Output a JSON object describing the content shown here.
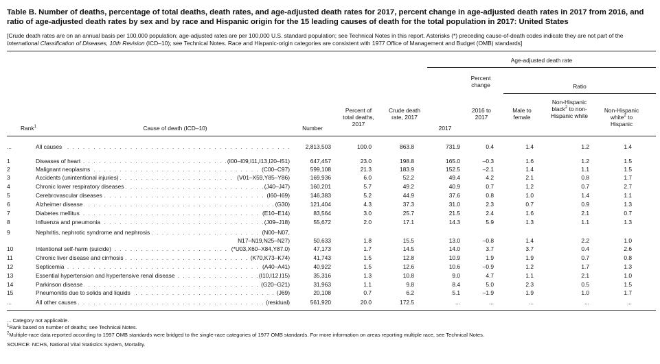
{
  "title": "Table B. Number of deaths, percentage of total deaths, death rates, and age-adjusted death rates for 2017, percent change in age-adjusted death rates in 2017 from 2016, and ratio of age-adjusted death rates by sex and by race and Hispanic origin for the 15 leading causes of death for the total population in 2017: United States",
  "subtitle_parts": {
    "a": "[Crude death rates are on an annual basis per 100,000 population; age-adjusted rates are per 100,000 U.S. standard population; see Technical Notes in this report. Asterisks (*) preceding cause-of-death codes indicate they are not part of the ",
    "b": "International Classification of Diseases, 10th Revision",
    "c": " (ICD–10); see Technical Notes. Race and Hispanic-origin categories are consistent with 1977 Office of Management and Budget (OMB) standards]"
  },
  "headers": {
    "age_adjusted": "Age-adjusted death rate",
    "percent_change": "Percent change",
    "ratio": "Ratio",
    "rank": "Rank",
    "rank_sup": "1",
    "cause": "Cause of death (ICD–10)",
    "number": "Number",
    "percent_total": "Percent of total deaths, 2017",
    "crude": "Crude death rate, 2017",
    "y2017": "2017",
    "change": "2016 to 2017",
    "male_female": "Male to female",
    "black_pre": "Non-Hispanic black",
    "black_sup": "2",
    "black_post": " to non-Hispanic white",
    "white_pre": "Non-Hispanic white",
    "white_sup": "2",
    "white_post": " to Hispanic"
  },
  "rows": [
    {
      "rank": "...",
      "cause": "All causes",
      "code": "",
      "number": "2,813,503",
      "pct": "100.0",
      "crude": "863.8",
      "aa": "731.9",
      "pc": "0.4",
      "male": "1.4",
      "black": "1.2",
      "white": "1.4"
    },
    {
      "rank": "1",
      "cause": "Diseases of heart",
      "code": "(I00–I09,I11,I13,I20–I51)",
      "number": "647,457",
      "pct": "23.0",
      "crude": "198.8",
      "aa": "165.0",
      "pc": "–0.3",
      "male": "1.6",
      "black": "1.2",
      "white": "1.5"
    },
    {
      "rank": "2",
      "cause": "Malignant neoplasms",
      "code": "(C00–C97)",
      "number": "599,108",
      "pct": "21.3",
      "crude": "183.9",
      "aa": "152.5",
      "pc": "–2.1",
      "male": "1.4",
      "black": "1.1",
      "white": "1.5"
    },
    {
      "rank": "3",
      "cause": "Accidents (unintentional injuries)",
      "code": "(V01–X59,Y85–Y86)",
      "number": "169,936",
      "pct": "6.0",
      "crude": "52.2",
      "aa": "49.4",
      "pc": "4.2",
      "male": "2.1",
      "black": "0.8",
      "white": "1.7"
    },
    {
      "rank": "4",
      "cause": "Chronic lower respiratory diseases",
      "code": "(J40–J47)",
      "number": "160,201",
      "pct": "5.7",
      "crude": "49.2",
      "aa": "40.9",
      "pc": "0.7",
      "male": "1.2",
      "black": "0.7",
      "white": "2.7"
    },
    {
      "rank": "5",
      "cause": "Cerebrovascular diseases",
      "code": "(I60–I69)",
      "number": "146,383",
      "pct": "5.2",
      "crude": "44.9",
      "aa": "37.6",
      "pc": "0.8",
      "male": "1.0",
      "black": "1.4",
      "white": "1.1"
    },
    {
      "rank": "6",
      "cause": "Alzheimer disease",
      "code": "(G30)",
      "number": "121,404",
      "pct": "4.3",
      "crude": "37.3",
      "aa": "31.0",
      "pc": "2.3",
      "male": "0.7",
      "black": "0.9",
      "white": "1.3"
    },
    {
      "rank": "7",
      "cause": "Diabetes mellitus",
      "code": "(E10–E14)",
      "number": "83,564",
      "pct": "3.0",
      "crude": "25.7",
      "aa": "21.5",
      "pc": "2.4",
      "male": "1.6",
      "black": "2.1",
      "white": "0.7"
    },
    {
      "rank": "8",
      "cause": "Influenza and pneumonia",
      "code": "(J09–J18)",
      "number": "55,672",
      "pct": "2.0",
      "crude": "17.1",
      "aa": "14.3",
      "pc": "5.9",
      "male": "1.3",
      "black": "1.1",
      "white": "1.3"
    },
    {
      "rank": "9",
      "cause": "Nephritis, nephrotic syndrome and nephrosis",
      "code": "(N00–N07,",
      "code2": "N17–N19,N25–N27)",
      "number": "50,633",
      "pct": "1.8",
      "crude": "15.5",
      "aa": "13.0",
      "pc": "–0.8",
      "male": "1.4",
      "black": "2.2",
      "white": "1.0"
    },
    {
      "rank": "10",
      "cause": "Intentional self-harm (suicide)",
      "code": "(*U03,X60–X84,Y87.0)",
      "number": "47,173",
      "pct": "1.7",
      "crude": "14.5",
      "aa": "14.0",
      "pc": "3.7",
      "male": "3.7",
      "black": "0.4",
      "white": "2.6"
    },
    {
      "rank": "11",
      "cause": "Chronic liver disease and cirrhosis",
      "code": "(K70,K73–K74)",
      "number": "41,743",
      "pct": "1.5",
      "crude": "12.8",
      "aa": "10.9",
      "pc": "1.9",
      "male": "1.9",
      "black": "0.7",
      "white": "0.8"
    },
    {
      "rank": "12",
      "cause": "Septicemia",
      "code": "(A40–A41)",
      "number": "40,922",
      "pct": "1.5",
      "crude": "12.6",
      "aa": "10.6",
      "pc": "–0.9",
      "male": "1.2",
      "black": "1.7",
      "white": "1.3"
    },
    {
      "rank": "13",
      "cause": "Essential hypertension and hypertensive renal disease",
      "code": "(I10,I12,I15)",
      "number": "35,316",
      "pct": "1.3",
      "crude": "10.8",
      "aa": "9.0",
      "pc": "4.7",
      "male": "1.1",
      "black": "2.1",
      "white": "1.0"
    },
    {
      "rank": "14",
      "cause": "Parkinson disease",
      "code": "(G20–G21)",
      "number": "31,963",
      "pct": "1.1",
      "crude": "9.8",
      "aa": "8.4",
      "pc": "5.0",
      "male": "2.3",
      "black": "0.5",
      "white": "1.5"
    },
    {
      "rank": "15",
      "cause": "Pneumonitis due to solids and liquids",
      "code": "(J69)",
      "number": "20,108",
      "pct": "0.7",
      "crude": "6.2",
      "aa": "5.1",
      "pc": "–1.9",
      "male": "1.9",
      "black": "1.0",
      "white": "1.7"
    },
    {
      "rank": "...",
      "cause": "All other causes",
      "code": "(residual)",
      "number": "561,920",
      "pct": "20.0",
      "crude": "172.5",
      "aa": "...",
      "pc": "...",
      "male": "...",
      "black": "...",
      "white": "..."
    }
  ],
  "footnotes": {
    "na": "... Category not applicable.",
    "f1_sup": "1",
    "f1": "Rank based on number of deaths; see Technical Notes.",
    "f2_sup": "2",
    "f2": "Multiple-race data reported according to 1997 OMB standards were bridged to the single-race categories of 1977 OMB standards. For more information on areas reporting multiple race, see Technical Notes.",
    "source": "SOURCE: NCHS, National Vital Statistics System, Mortality."
  }
}
